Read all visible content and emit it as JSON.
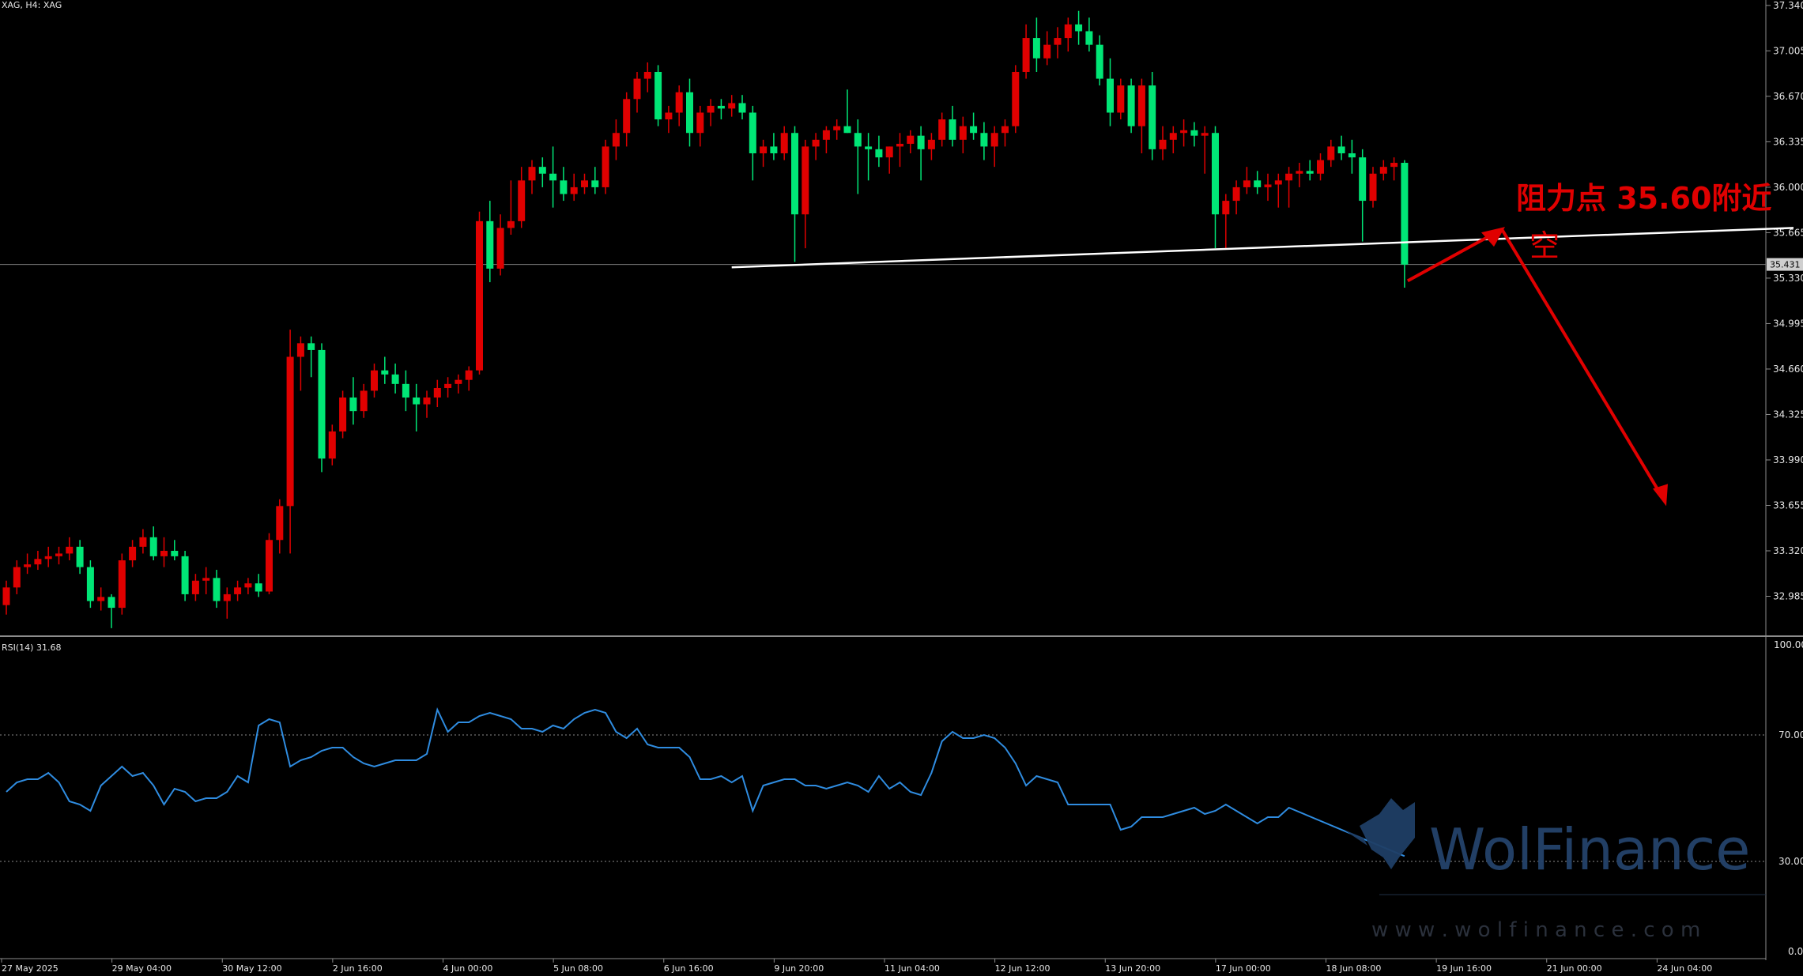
{
  "header": {
    "symbol_label": "XAG, H4:  XAG"
  },
  "rsi_panel": {
    "label": "RSI(14) 31.68",
    "levels": [
      30,
      70
    ],
    "range": [
      0,
      100
    ]
  },
  "price_panel": {
    "current_price_label": "35.431"
  },
  "annotation": {
    "line1": "阻力点 35.60附近",
    "line2": "空"
  },
  "watermark": {
    "brand": "WolFinance",
    "url": "w w w . w o l f i n a n c e . c o m"
  },
  "colors": {
    "bull": "#e00000",
    "bear": "#00e676",
    "rsi": "#2f8ce0",
    "trendline": "#ffffff",
    "arrow": "#e00000",
    "background": "#000000"
  },
  "chart_data": {
    "type": "candlestick",
    "instrument": "XAG",
    "timeframe": "H4",
    "ylim": [
      32.72,
      37.38
    ],
    "y_ticks": [
      "37.340",
      "37.005",
      "36.670",
      "36.335",
      "36.000",
      "35.665",
      "35.330",
      "34.995",
      "34.660",
      "34.325",
      "33.990",
      "33.655",
      "33.320",
      "32.985"
    ],
    "x_ticks": [
      "27 May 2025",
      "29 May 04:00",
      "30 May 12:00",
      "2 Jun 16:00",
      "4 Jun 00:00",
      "5 Jun 08:00",
      "6 Jun 16:00",
      "9 Jun 20:00",
      "11 Jun 04:00",
      "12 Jun 12:00",
      "13 Jun 20:00",
      "17 Jun 00:00",
      "18 Jun 08:00",
      "19 Jun 16:00",
      "21 Jun 00:00",
      "24 Jun 04:00"
    ],
    "candles": [
      [
        32.92,
        33.1,
        32.85,
        33.05
      ],
      [
        33.05,
        33.25,
        33.0,
        33.2
      ],
      [
        33.2,
        33.3,
        33.15,
        33.22
      ],
      [
        33.22,
        33.32,
        33.18,
        33.26
      ],
      [
        33.26,
        33.35,
        33.2,
        33.28
      ],
      [
        33.28,
        33.35,
        33.22,
        33.3
      ],
      [
        33.3,
        33.42,
        33.25,
        33.35
      ],
      [
        33.35,
        33.4,
        33.15,
        33.2
      ],
      [
        33.2,
        33.25,
        32.9,
        32.95
      ],
      [
        32.95,
        33.05,
        32.88,
        32.98
      ],
      [
        32.98,
        33.0,
        32.75,
        32.9
      ],
      [
        32.9,
        33.3,
        32.85,
        33.25
      ],
      [
        33.25,
        33.4,
        33.2,
        33.35
      ],
      [
        33.35,
        33.48,
        33.3,
        33.42
      ],
      [
        33.42,
        33.5,
        33.25,
        33.28
      ],
      [
        33.28,
        33.42,
        33.2,
        33.32
      ],
      [
        33.32,
        33.4,
        33.25,
        33.28
      ],
      [
        33.28,
        33.32,
        32.95,
        33.0
      ],
      [
        33.0,
        33.15,
        32.95,
        33.1
      ],
      [
        33.1,
        33.2,
        33.0,
        33.12
      ],
      [
        33.12,
        33.18,
        32.9,
        32.95
      ],
      [
        32.95,
        33.05,
        32.82,
        33.0
      ],
      [
        33.0,
        33.1,
        32.95,
        33.05
      ],
      [
        33.05,
        33.12,
        33.0,
        33.08
      ],
      [
        33.08,
        33.15,
        32.98,
        33.02
      ],
      [
        33.02,
        33.45,
        33.0,
        33.4
      ],
      [
        33.4,
        33.7,
        33.3,
        33.65
      ],
      [
        33.65,
        34.95,
        33.3,
        34.75
      ],
      [
        34.75,
        34.9,
        34.5,
        34.85
      ],
      [
        34.85,
        34.9,
        34.6,
        34.8
      ],
      [
        34.8,
        34.85,
        33.9,
        34.0
      ],
      [
        34.0,
        34.25,
        33.95,
        34.2
      ],
      [
        34.2,
        34.5,
        34.15,
        34.45
      ],
      [
        34.45,
        34.6,
        34.25,
        34.35
      ],
      [
        34.35,
        34.55,
        34.3,
        34.5
      ],
      [
        34.5,
        34.7,
        34.45,
        34.65
      ],
      [
        34.65,
        34.75,
        34.55,
        34.62
      ],
      [
        34.62,
        34.7,
        34.48,
        34.55
      ],
      [
        34.55,
        34.65,
        34.35,
        34.45
      ],
      [
        34.45,
        34.55,
        34.2,
        34.4
      ],
      [
        34.4,
        34.5,
        34.3,
        34.45
      ],
      [
        34.45,
        34.58,
        34.38,
        34.52
      ],
      [
        34.52,
        34.6,
        34.45,
        34.55
      ],
      [
        34.55,
        34.62,
        34.48,
        34.58
      ],
      [
        34.58,
        34.68,
        34.5,
        34.65
      ],
      [
        34.65,
        35.82,
        34.62,
        35.75
      ],
      [
        35.75,
        35.9,
        35.3,
        35.4
      ],
      [
        35.4,
        35.8,
        35.35,
        35.7
      ],
      [
        35.7,
        36.05,
        35.65,
        35.75
      ],
      [
        35.75,
        36.15,
        35.7,
        36.05
      ],
      [
        36.05,
        36.2,
        35.95,
        36.15
      ],
      [
        36.15,
        36.22,
        36.0,
        36.1
      ],
      [
        36.1,
        36.3,
        35.85,
        36.05
      ],
      [
        36.05,
        36.15,
        35.9,
        35.95
      ],
      [
        35.95,
        36.1,
        35.9,
        36.0
      ],
      [
        36.0,
        36.1,
        35.95,
        36.05
      ],
      [
        36.05,
        36.15,
        35.95,
        36.0
      ],
      [
        36.0,
        36.35,
        35.95,
        36.3
      ],
      [
        36.3,
        36.5,
        36.2,
        36.4
      ],
      [
        36.4,
        36.7,
        36.3,
        36.65
      ],
      [
        36.65,
        36.85,
        36.55,
        36.8
      ],
      [
        36.8,
        36.92,
        36.7,
        36.85
      ],
      [
        36.85,
        36.9,
        36.45,
        36.5
      ],
      [
        36.5,
        36.6,
        36.4,
        36.55
      ],
      [
        36.55,
        36.75,
        36.45,
        36.7
      ],
      [
        36.7,
        36.8,
        36.3,
        36.4
      ],
      [
        36.4,
        36.6,
        36.3,
        36.55
      ],
      [
        36.55,
        36.65,
        36.45,
        36.6
      ],
      [
        36.6,
        36.65,
        36.5,
        36.58
      ],
      [
        36.58,
        36.68,
        36.52,
        36.62
      ],
      [
        36.62,
        36.68,
        36.5,
        36.55
      ],
      [
        36.55,
        36.6,
        36.05,
        36.25
      ],
      [
        36.25,
        36.35,
        36.15,
        36.3
      ],
      [
        36.3,
        36.4,
        36.2,
        36.25
      ],
      [
        36.25,
        36.45,
        36.2,
        36.4
      ],
      [
        36.4,
        36.45,
        35.45,
        35.8
      ],
      [
        35.8,
        36.35,
        35.55,
        36.3
      ],
      [
        36.3,
        36.4,
        36.2,
        36.35
      ],
      [
        36.35,
        36.45,
        36.25,
        36.42
      ],
      [
        36.42,
        36.5,
        36.35,
        36.45
      ],
      [
        36.45,
        36.72,
        36.4,
        36.4
      ],
      [
        36.4,
        36.5,
        35.95,
        36.3
      ],
      [
        36.3,
        36.4,
        36.05,
        36.28
      ],
      [
        36.28,
        36.38,
        36.15,
        36.22
      ],
      [
        36.22,
        36.3,
        36.1,
        36.3
      ],
      [
        36.3,
        36.4,
        36.15,
        36.32
      ],
      [
        36.32,
        36.42,
        36.25,
        36.38
      ],
      [
        36.38,
        36.45,
        36.05,
        36.28
      ],
      [
        36.28,
        36.4,
        36.2,
        36.35
      ],
      [
        36.35,
        36.55,
        36.3,
        36.5
      ],
      [
        36.5,
        36.6,
        36.3,
        36.35
      ],
      [
        36.35,
        36.52,
        36.25,
        36.45
      ],
      [
        36.45,
        36.55,
        36.35,
        36.4
      ],
      [
        36.4,
        36.48,
        36.2,
        36.3
      ],
      [
        36.3,
        36.45,
        36.15,
        36.4
      ],
      [
        36.4,
        36.5,
        36.3,
        36.45
      ],
      [
        36.45,
        36.9,
        36.4,
        36.85
      ],
      [
        36.85,
        37.2,
        36.8,
        37.1
      ],
      [
        37.1,
        37.25,
        36.85,
        36.95
      ],
      [
        36.95,
        37.15,
        36.9,
        37.05
      ],
      [
        37.05,
        37.18,
        36.95,
        37.1
      ],
      [
        37.1,
        37.25,
        37.0,
        37.2
      ],
      [
        37.2,
        37.3,
        37.05,
        37.15
      ],
      [
        37.15,
        37.25,
        37.0,
        37.05
      ],
      [
        37.05,
        37.12,
        36.75,
        36.8
      ],
      [
        36.8,
        36.95,
        36.45,
        36.55
      ],
      [
        36.55,
        36.8,
        36.5,
        36.75
      ],
      [
        36.75,
        36.8,
        36.4,
        36.45
      ],
      [
        36.45,
        36.8,
        36.25,
        36.75
      ],
      [
        36.75,
        36.85,
        36.2,
        36.28
      ],
      [
        36.28,
        36.45,
        36.2,
        36.35
      ],
      [
        36.35,
        36.45,
        36.25,
        36.4
      ],
      [
        36.4,
        36.5,
        36.3,
        36.42
      ],
      [
        36.42,
        36.48,
        36.3,
        36.38
      ],
      [
        36.38,
        36.45,
        36.1,
        36.4
      ],
      [
        36.4,
        36.45,
        35.55,
        35.8
      ],
      [
        35.8,
        35.95,
        35.55,
        35.9
      ],
      [
        35.9,
        36.05,
        35.8,
        36.0
      ],
      [
        36.0,
        36.15,
        35.95,
        36.05
      ],
      [
        36.05,
        36.12,
        35.95,
        36.0
      ],
      [
        36.0,
        36.1,
        35.9,
        36.02
      ],
      [
        36.02,
        36.1,
        35.85,
        36.05
      ],
      [
        36.05,
        36.15,
        35.85,
        36.1
      ],
      [
        36.1,
        36.18,
        36.0,
        36.12
      ],
      [
        36.12,
        36.2,
        36.05,
        36.1
      ],
      [
        36.1,
        36.25,
        36.05,
        36.2
      ],
      [
        36.2,
        36.35,
        36.15,
        36.3
      ],
      [
        36.3,
        36.38,
        36.2,
        36.25
      ],
      [
        36.25,
        36.35,
        36.1,
        36.22
      ],
      [
        36.22,
        36.28,
        35.6,
        35.9
      ],
      [
        35.9,
        36.15,
        35.85,
        36.1
      ],
      [
        36.1,
        36.2,
        36.05,
        36.15
      ],
      [
        36.15,
        36.22,
        36.05,
        36.18
      ],
      [
        36.18,
        36.2,
        35.26,
        35.43
      ]
    ],
    "rsi": [
      52,
      55,
      56,
      56,
      58,
      55,
      49,
      48,
      46,
      54,
      57,
      60,
      57,
      58,
      54,
      48,
      53,
      52,
      49,
      50,
      50,
      52,
      57,
      55,
      73,
      75,
      74,
      60,
      62,
      63,
      65,
      66,
      66,
      63,
      61,
      60,
      61,
      62,
      62,
      62,
      64,
      78,
      71,
      74,
      74,
      76,
      77,
      76,
      75,
      72,
      72,
      71,
      73,
      72,
      75,
      77,
      78,
      77,
      71,
      69,
      72,
      67,
      66,
      66,
      66,
      63,
      56,
      56,
      57,
      55,
      57,
      46,
      54,
      55,
      56,
      56,
      54,
      54,
      53,
      54,
      55,
      54,
      52,
      57,
      53,
      55,
      52,
      51,
      58,
      68,
      71,
      69,
      69,
      70,
      69,
      66,
      61,
      54,
      57,
      56,
      55,
      48,
      48,
      48,
      48,
      48,
      40,
      41,
      44,
      44,
      44,
      45,
      46,
      47,
      45,
      46,
      48,
      46,
      44,
      42,
      44,
      44,
      47
    ],
    "rsi_current": 31.68,
    "trendline": {
      "from_index": 69,
      "from_price": 35.41,
      "to_index": 170,
      "to_price": 35.7
    },
    "annotation_target_price": 35.6,
    "projection_arrow_prices": [
      35.31,
      35.69,
      33.65
    ]
  }
}
